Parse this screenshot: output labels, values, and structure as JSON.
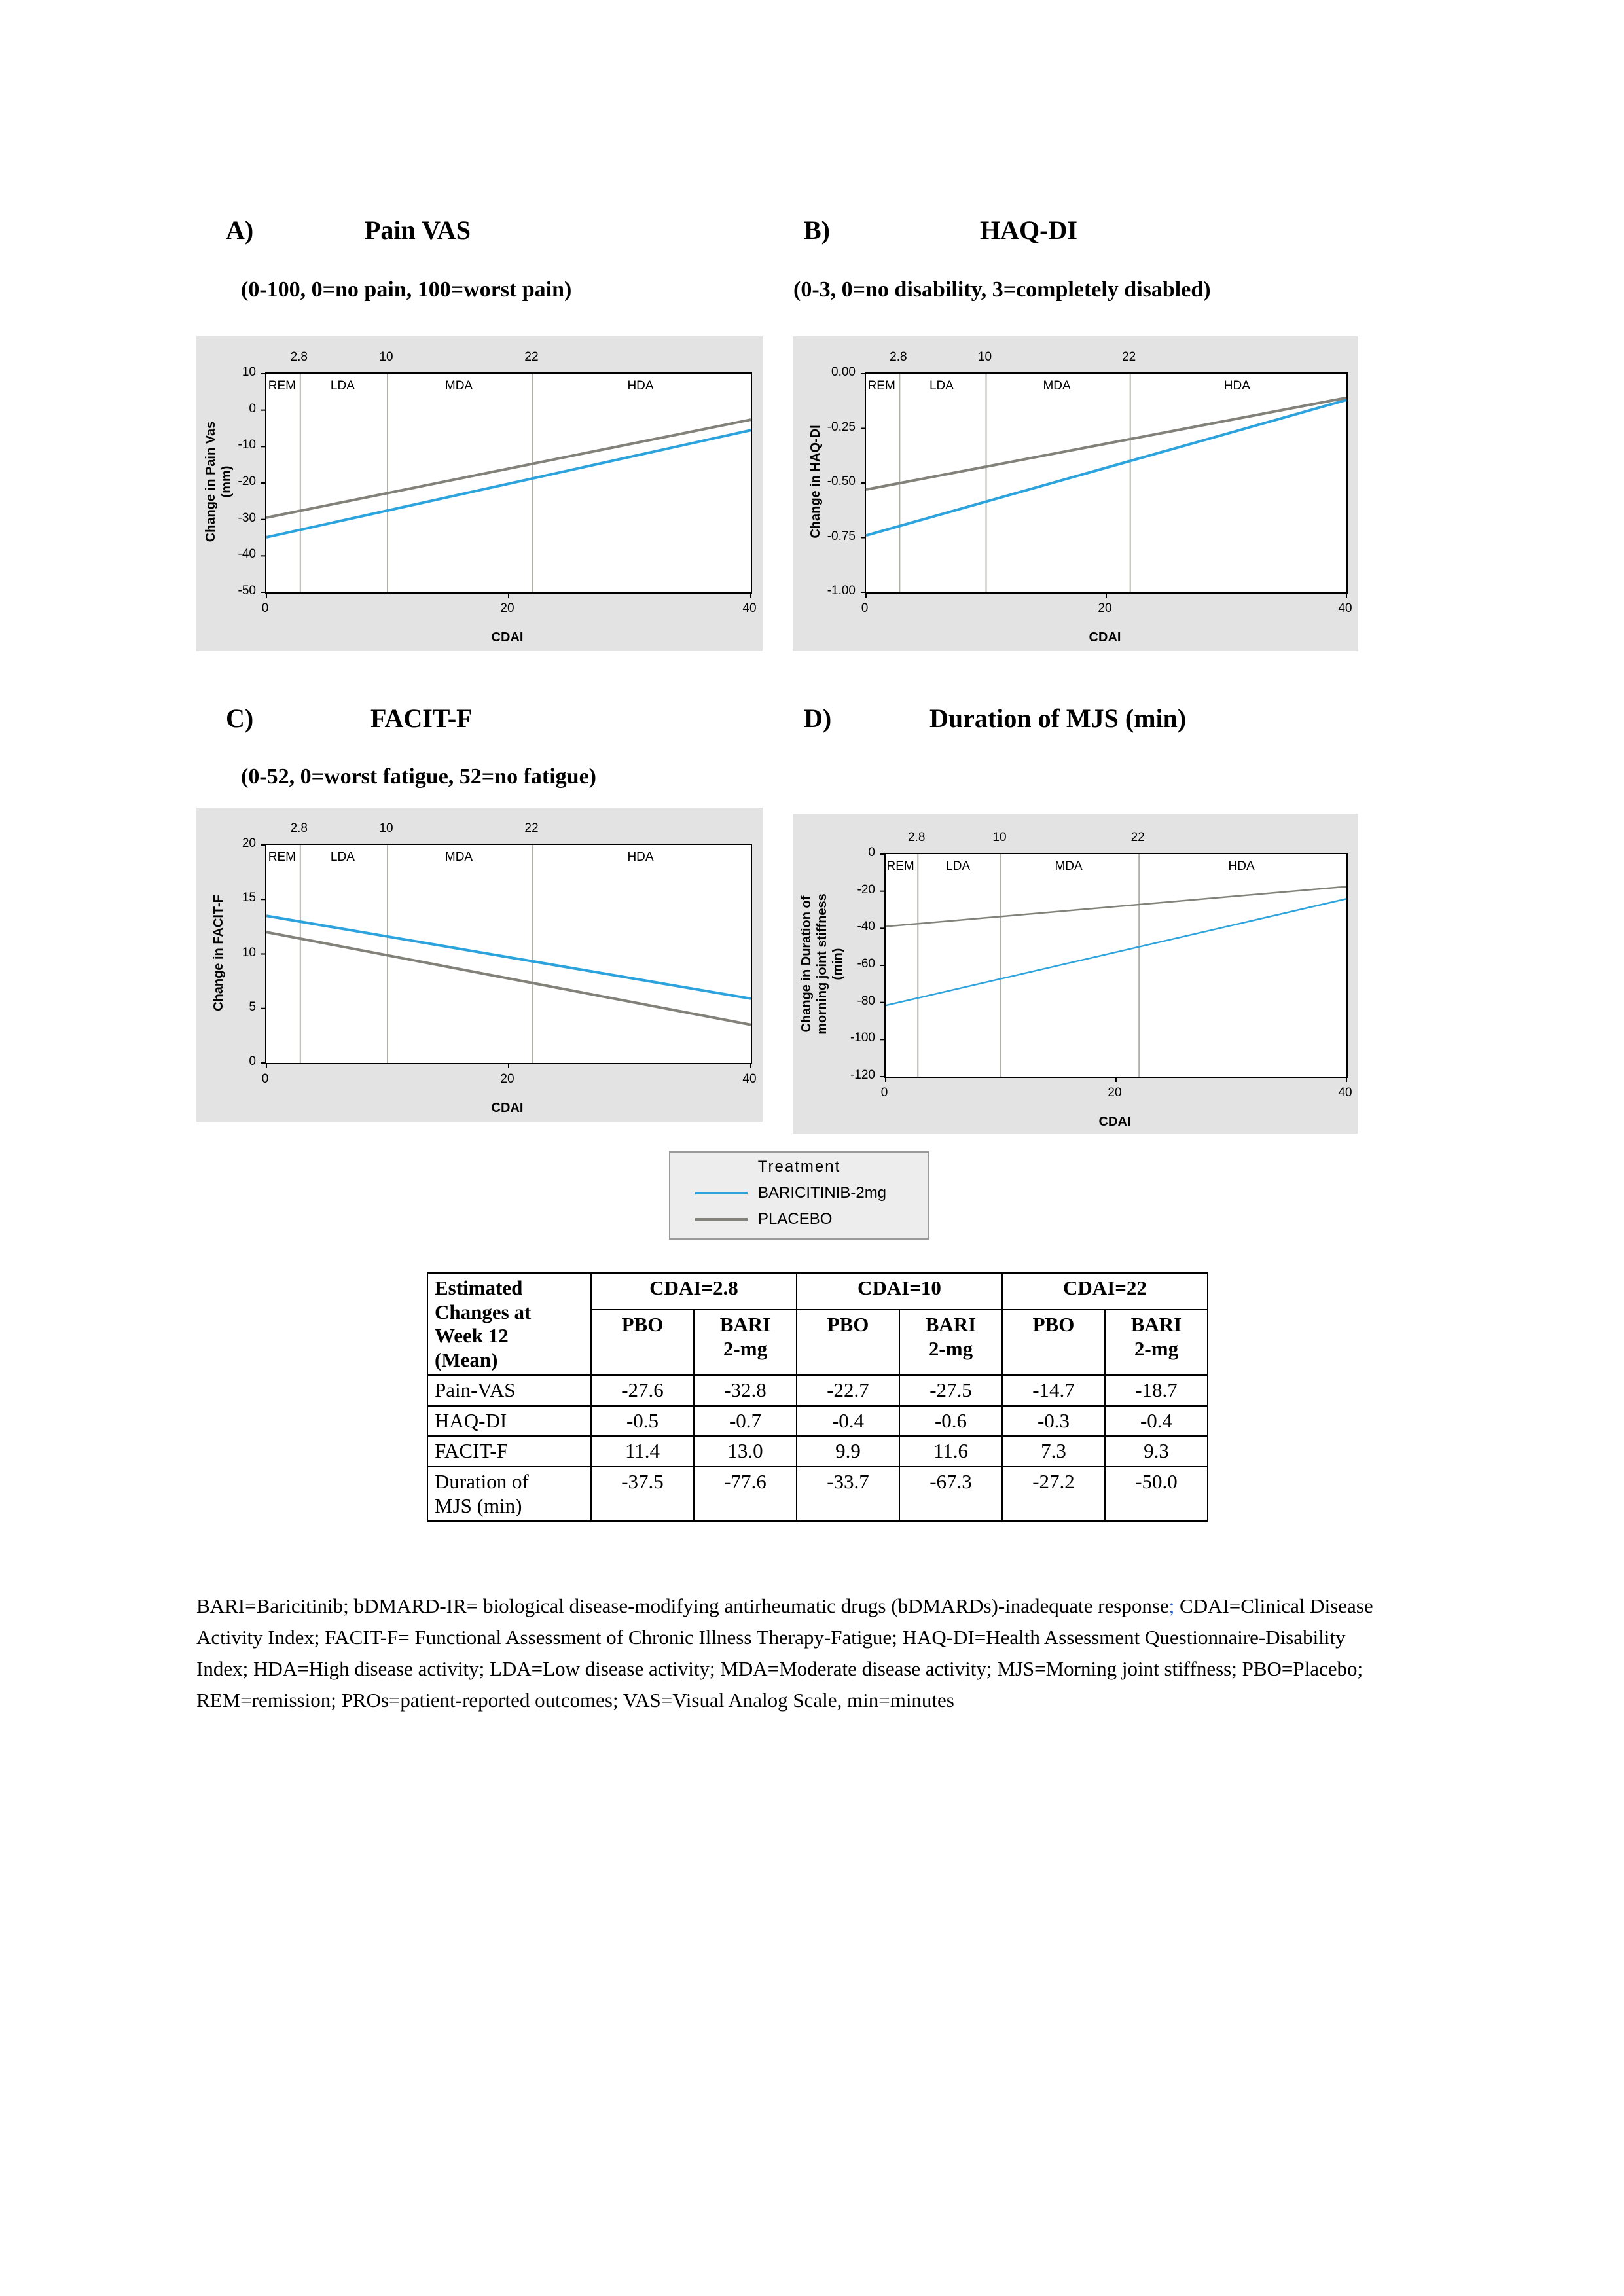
{
  "panels": [
    {
      "id": "A",
      "label": "A)",
      "title": "Pain VAS",
      "subtitle": "(0-100, 0=no pain, 100=worst pain)"
    },
    {
      "id": "B",
      "label": "B)",
      "title": "HAQ-DI",
      "subtitle": "(0-3, 0=no disability, 3=completely disabled)"
    },
    {
      "id": "C",
      "label": "C)",
      "title": "FACIT-F",
      "subtitle": "(0-52, 0=worst fatigue, 52=no fatigue)"
    },
    {
      "id": "D",
      "label": "D)",
      "title": "Duration of MJS (min)",
      "subtitle": ""
    }
  ],
  "chart_data": [
    {
      "id": "A",
      "type": "line",
      "title": "Pain VAS",
      "xlabel": "CDAI",
      "ylabel": "Change in Pain Vas\n(mm)",
      "xlim": [
        0,
        40
      ],
      "ylim": [
        -50,
        10
      ],
      "xticks": [
        0,
        20,
        40
      ],
      "xtick_labels": [
        "0",
        "20",
        "40"
      ],
      "yticks": [
        10,
        0,
        -10,
        -20,
        -30,
        -40,
        -50
      ],
      "ytick_labels": [
        "10",
        "0",
        "-10",
        "-20",
        "-30",
        "-40",
        "-50"
      ],
      "ref_lines": [
        2.8,
        10,
        22
      ],
      "ref_labels": [
        "2.8",
        "10",
        "22"
      ],
      "regions": [
        {
          "label": "REM",
          "from": 0,
          "to": 2.8
        },
        {
          "label": "LDA",
          "from": 2.8,
          "to": 10
        },
        {
          "label": "MDA",
          "from": 10,
          "to": 22
        },
        {
          "label": "HDA",
          "from": 22,
          "to": 40
        }
      ],
      "line_width": 4,
      "series": [
        {
          "name": "BARICITINIB-2mg",
          "color": "#2ca3dc",
          "x": [
            2.8,
            10,
            22
          ],
          "y": [
            -32.8,
            -27.5,
            -18.7
          ],
          "x_draw": [
            0,
            40
          ],
          "y_draw": [
            -34.9,
            -5.5
          ]
        },
        {
          "name": "PLACEBO",
          "color": "#82827a",
          "x": [
            2.8,
            10,
            22
          ],
          "y": [
            -27.6,
            -22.7,
            -14.7
          ],
          "x_draw": [
            0,
            40
          ],
          "y_draw": [
            -29.5,
            -2.6
          ]
        }
      ]
    },
    {
      "id": "B",
      "type": "line",
      "title": "HAQ-DI",
      "xlabel": "CDAI",
      "ylabel": "Change in HAQ-DI",
      "xlim": [
        0,
        40
      ],
      "ylim": [
        -1.0,
        0.0
      ],
      "xticks": [
        0,
        20,
        40
      ],
      "xtick_labels": [
        "0",
        "20",
        "40"
      ],
      "yticks": [
        0,
        -0.25,
        -0.5,
        -0.75,
        -1.0
      ],
      "ytick_labels": [
        "0.00",
        "-0.25",
        "-0.50",
        "-0.75",
        "-1.00"
      ],
      "ref_lines": [
        2.8,
        10,
        22
      ],
      "ref_labels": [
        "2.8",
        "10",
        "22"
      ],
      "regions": [
        {
          "label": "REM",
          "from": 0,
          "to": 2.8
        },
        {
          "label": "LDA",
          "from": 2.8,
          "to": 10
        },
        {
          "label": "MDA",
          "from": 10,
          "to": 22
        },
        {
          "label": "HDA",
          "from": 22,
          "to": 40
        }
      ],
      "line_width": 4,
      "series": [
        {
          "name": "BARICITINIB-2mg",
          "color": "#2ca3dc",
          "x": [
            2.8,
            10,
            22
          ],
          "y": [
            -0.7,
            -0.6,
            -0.4
          ],
          "x_draw": [
            0,
            40
          ],
          "y_draw": [
            -0.74,
            -0.12
          ]
        },
        {
          "name": "PLACEBO",
          "color": "#82827a",
          "x": [
            2.8,
            10,
            22
          ],
          "y": [
            -0.5,
            -0.4,
            -0.3
          ],
          "x_draw": [
            0,
            40
          ],
          "y_draw": [
            -0.53,
            -0.11
          ]
        }
      ]
    },
    {
      "id": "C",
      "type": "line",
      "title": "FACIT-F",
      "xlabel": "CDAI",
      "ylabel": "Change in FACIT-F",
      "xlim": [
        0,
        40
      ],
      "ylim": [
        0,
        20
      ],
      "xticks": [
        0,
        20,
        40
      ],
      "xtick_labels": [
        "0",
        "20",
        "40"
      ],
      "yticks": [
        20,
        15,
        10,
        5,
        0
      ],
      "ytick_labels": [
        "20",
        "15",
        "10",
        "5",
        "0"
      ],
      "ref_lines": [
        2.8,
        10,
        22
      ],
      "ref_labels": [
        "2.8",
        "10",
        "22"
      ],
      "regions": [
        {
          "label": "REM",
          "from": 0,
          "to": 2.8
        },
        {
          "label": "LDA",
          "from": 2.8,
          "to": 10
        },
        {
          "label": "MDA",
          "from": 10,
          "to": 22
        },
        {
          "label": "HDA",
          "from": 22,
          "to": 40
        }
      ],
      "line_width": 4,
      "series": [
        {
          "name": "BARICITINIB-2mg",
          "color": "#2ca3dc",
          "x": [
            2.8,
            10,
            22
          ],
          "y": [
            13.0,
            11.6,
            9.3
          ],
          "x_draw": [
            0,
            40
          ],
          "y_draw": [
            13.5,
            5.9
          ]
        },
        {
          "name": "PLACEBO",
          "color": "#82827a",
          "x": [
            2.8,
            10,
            22
          ],
          "y": [
            11.4,
            9.9,
            7.3
          ],
          "x_draw": [
            0,
            40
          ],
          "y_draw": [
            12.0,
            3.5
          ]
        }
      ]
    },
    {
      "id": "D",
      "type": "line",
      "title": "Duration of MJS (min)",
      "xlabel": "CDAI",
      "ylabel": "Change in Duration of\nmorning joint stiffness\n(min)",
      "xlim": [
        0,
        40
      ],
      "ylim": [
        -120,
        0
      ],
      "xticks": [
        0,
        20,
        40
      ],
      "xtick_labels": [
        "0",
        "20",
        "40"
      ],
      "yticks": [
        0,
        -20,
        -40,
        -60,
        -80,
        -100,
        -120
      ],
      "ytick_labels": [
        "0",
        "-20",
        "-40",
        "-60",
        "-80",
        "-100",
        "-120"
      ],
      "ref_lines": [
        2.8,
        10,
        22
      ],
      "ref_labels": [
        "2.8",
        "10",
        "22"
      ],
      "regions": [
        {
          "label": "REM",
          "from": 0,
          "to": 2.8
        },
        {
          "label": "LDA",
          "from": 2.8,
          "to": 10
        },
        {
          "label": "MDA",
          "from": 10,
          "to": 22
        },
        {
          "label": "HDA",
          "from": 22,
          "to": 40
        }
      ],
      "line_width": 2.5,
      "series": [
        {
          "name": "BARICITINIB-2mg",
          "color": "#2ca3dc",
          "x": [
            2.8,
            10,
            22
          ],
          "y": [
            -77.6,
            -67.3,
            -50.0
          ],
          "x_draw": [
            0,
            40
          ],
          "y_draw": [
            -81.6,
            -24.1
          ]
        },
        {
          "name": "PLACEBO",
          "color": "#82827a",
          "x": [
            2.8,
            10,
            22
          ],
          "y": [
            -37.5,
            -33.7,
            -27.2
          ],
          "x_draw": [
            0,
            40
          ],
          "y_draw": [
            -39.0,
            -17.5
          ]
        }
      ]
    }
  ],
  "legend": {
    "title": "Treatment",
    "entries": [
      {
        "label": "BARICITINIB-2mg",
        "color": "#2ca3dc"
      },
      {
        "label": "PLACEBO",
        "color": "#82827a"
      }
    ]
  },
  "table": {
    "corner_header": "Estimated\nChanges at\nWeek 12\n(Mean)",
    "col_groups": [
      "CDAI=2.8",
      "CDAI=10",
      "CDAI=22"
    ],
    "sub_headers": [
      "PBO",
      "BARI\n2-mg",
      "PBO",
      "BARI\n2-mg",
      "PBO",
      "BARI\n2-mg"
    ],
    "rows": [
      {
        "label": "Pain-VAS",
        "values": [
          "-27.6",
          "-32.8",
          "-22.7",
          "-27.5",
          "-14.7",
          "-18.7"
        ]
      },
      {
        "label": "HAQ-DI",
        "values": [
          "-0.5",
          "-0.7",
          "-0.4",
          "-0.6",
          "-0.3",
          "-0.4"
        ]
      },
      {
        "label": "FACIT-F",
        "values": [
          "11.4",
          "13.0",
          "9.9",
          "11.6",
          "7.3",
          "9.3"
        ]
      },
      {
        "label": "Duration of\nMJS (min)",
        "values": [
          "-37.5",
          "-77.6",
          "-33.7",
          "-67.3",
          "-27.2",
          "-50.0"
        ]
      }
    ]
  },
  "footnote": {
    "segments": [
      {
        "text": "BARI=Baricitinib; bDMARD-IR= biological disease-modifying antirheumatic drugs (bDMARDs)-inadequate response",
        "color": "#000000"
      },
      {
        "text": ";",
        "color": "#2456c8"
      },
      {
        "text": " CDAI=Clinical Disease Activity Index; FACIT-F= Functional Assessment of Chronic Illness Therapy-Fatigue; HAQ-DI=Health Assessment Questionnaire-Disability Index; HDA=High disease activity; LDA=Low disease activity; MDA=Moderate disease activity; MJS=Morning joint stiffness; PBO=Placebo; REM=remission; PROs=patient-reported outcomes; VAS=Visual Analog Scale, min=minutes",
        "color": "#000000"
      }
    ]
  }
}
